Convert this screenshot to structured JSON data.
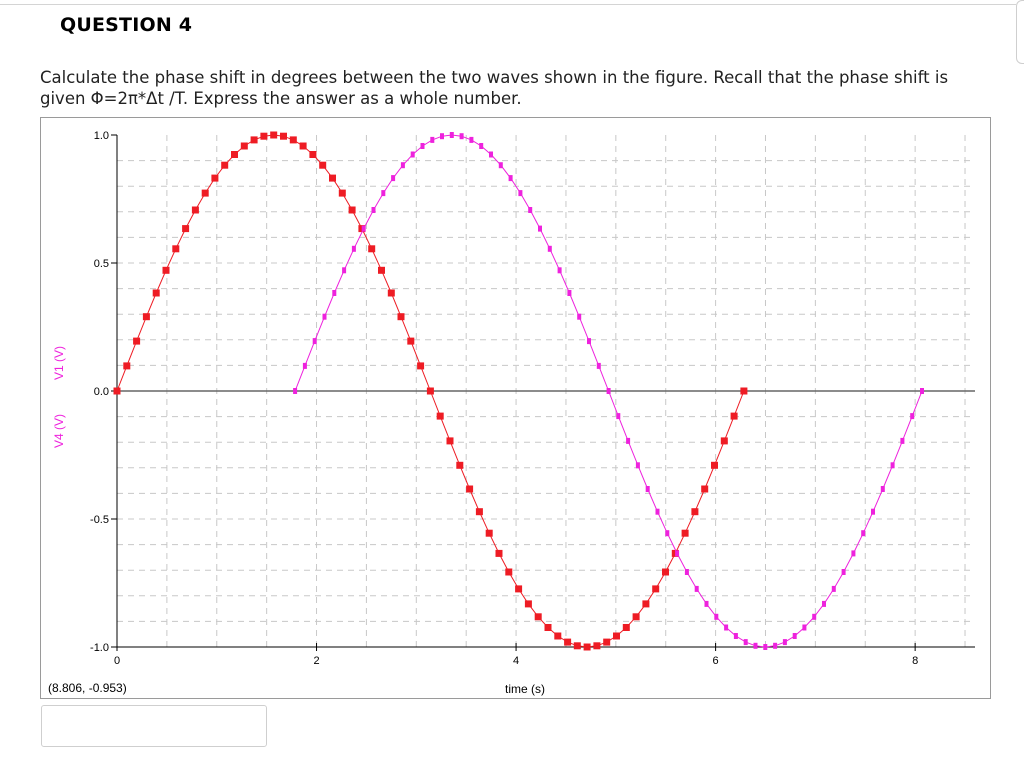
{
  "question": {
    "title": "QUESTION 4",
    "text_line1": "Calculate the phase shift in degrees between the two waves shown in the figure. Recall that the phase shift is",
    "text_line2": "given Φ=2π*Δt /T. Express the answer as a whole number."
  },
  "answer": {
    "value": ""
  },
  "colors": {
    "v1": "#ee1c24",
    "v4": "#ee22dd",
    "axis": "#000000",
    "zero_line": "#666666",
    "grid": "#c8c8c8"
  },
  "chart_data": {
    "type": "line",
    "xlabel": "time (s)",
    "ylabel_series": [
      "V4 (V)",
      "V1 (V)"
    ],
    "xlim": [
      0,
      8.6
    ],
    "ylim": [
      -1.0,
      1.0
    ],
    "x_ticks": [
      0,
      2,
      4,
      6,
      8
    ],
    "x_tick_labels": [
      "0",
      "2",
      "4",
      "6",
      "8"
    ],
    "y_ticks": [
      1.0,
      0.5,
      0.0,
      -0.5,
      -1.0
    ],
    "y_tick_labels": [
      "1.0",
      "0.5",
      "0.0",
      "-0.5",
      "-1.0"
    ],
    "cursor_readout": "(8.806, -0.953)",
    "grid": true,
    "series": [
      {
        "name": "V1 (V)",
        "color": "#ee1c24",
        "marker": "square",
        "function": "sin(t)",
        "t_start": 0.0,
        "t_end": 6.2832,
        "sample_count": 64
      },
      {
        "name": "V4 (V)",
        "color": "#ee22dd",
        "marker": "small-square",
        "function": "sin(t - 1.7854)",
        "t_start": 1.7854,
        "t_end": 8.0686,
        "sample_count": 64
      }
    ]
  }
}
